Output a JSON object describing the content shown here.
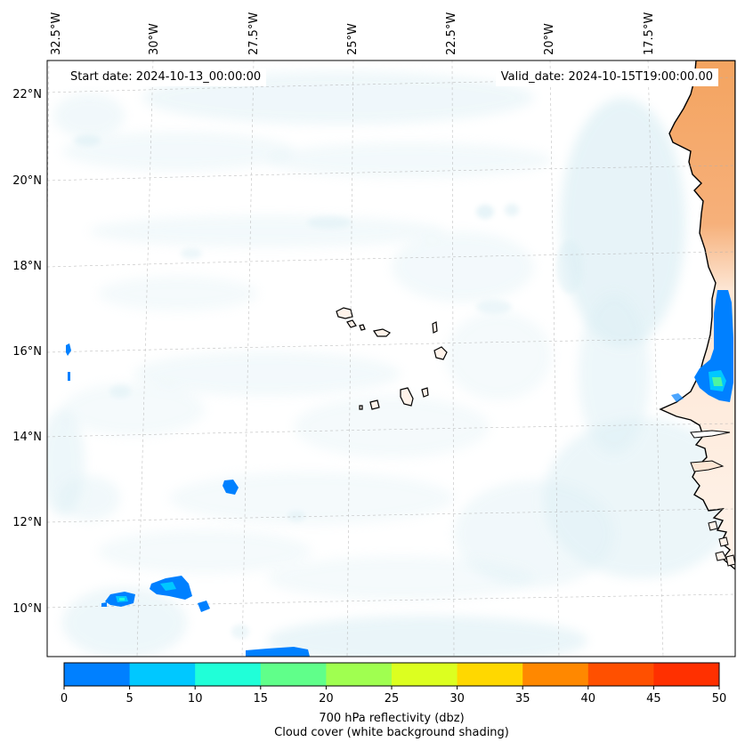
{
  "map": {
    "start_date": "Start date: 2024-10-13_00:00:00",
    "valid_date": "Valid_date: 2024-10-15T19:00:00.00",
    "lon_labels": [
      "32.5°W",
      "30°W",
      "27.5°W",
      "25°W",
      "22.5°W",
      "20°W",
      "17.5°W"
    ],
    "lat_labels": [
      "22°N",
      "20°N",
      "18°N",
      "16°N",
      "14°N",
      "12°N",
      "10°N"
    ],
    "land_color": "#f4a460",
    "cloud_color": "#d4ecf3",
    "coast_color": "#000000"
  },
  "colorbar": {
    "ticks": [
      "0",
      "5",
      "10",
      "15",
      "20",
      "25",
      "30",
      "35",
      "40",
      "45",
      "50"
    ],
    "colors": [
      "#0080ff",
      "#00c8ff",
      "#20ffd8",
      "#60ff8a",
      "#a0ff50",
      "#dcff20",
      "#ffd800",
      "#ff8800",
      "#ff5000",
      "#ff3000"
    ],
    "label_line1": "700 hPa reflectivity (dbz)",
    "label_line2": "Cloud cover (white background shading)"
  }
}
